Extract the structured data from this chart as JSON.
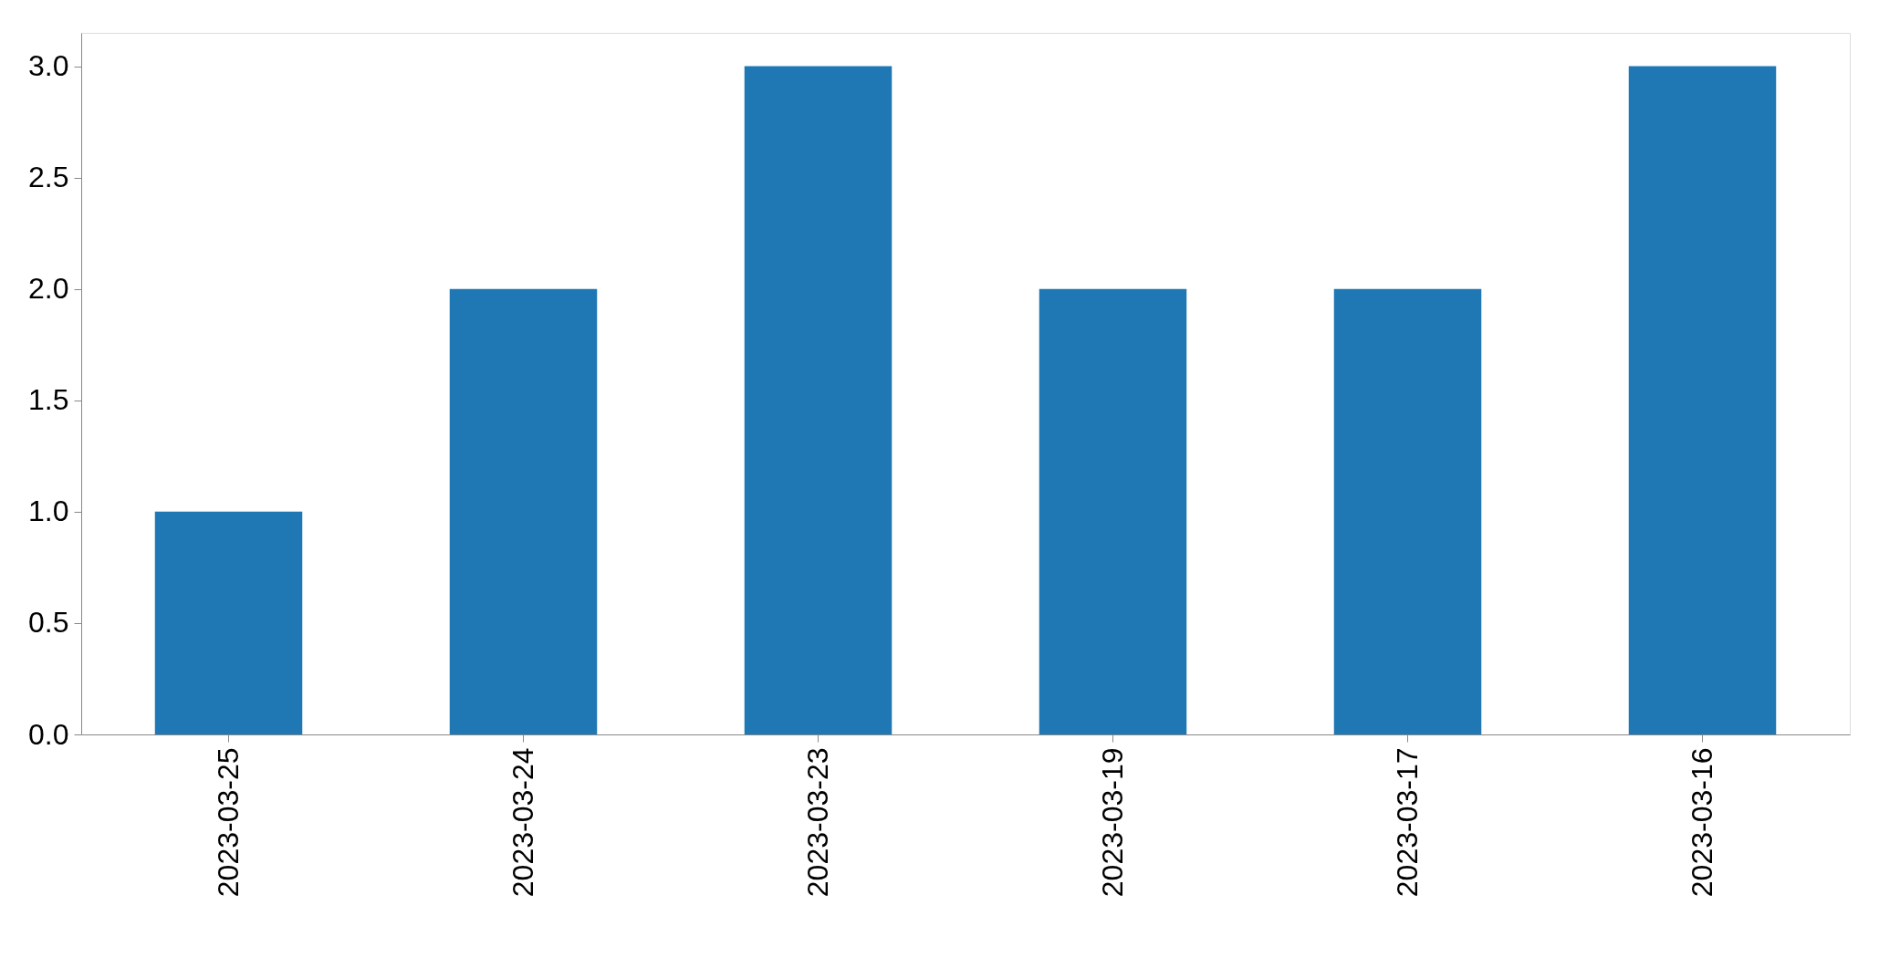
{
  "chart_data": {
    "type": "bar",
    "categories": [
      "2023-03-25",
      "2023-03-24",
      "2023-03-23",
      "2023-03-19",
      "2023-03-17",
      "2023-03-16"
    ],
    "values": [
      1,
      2,
      3,
      2,
      2,
      3
    ],
    "color": "#1f77b4",
    "ylim": [
      0,
      3.15
    ],
    "yticks": [
      {
        "value": 0,
        "label": "0.0"
      },
      0.5,
      {
        "value": 1,
        "label": "1.0"
      },
      1.5,
      {
        "value": 2,
        "label": "2.0"
      },
      2.5,
      {
        "value": 3,
        "label": "3.0"
      }
    ],
    "grid": false
  }
}
